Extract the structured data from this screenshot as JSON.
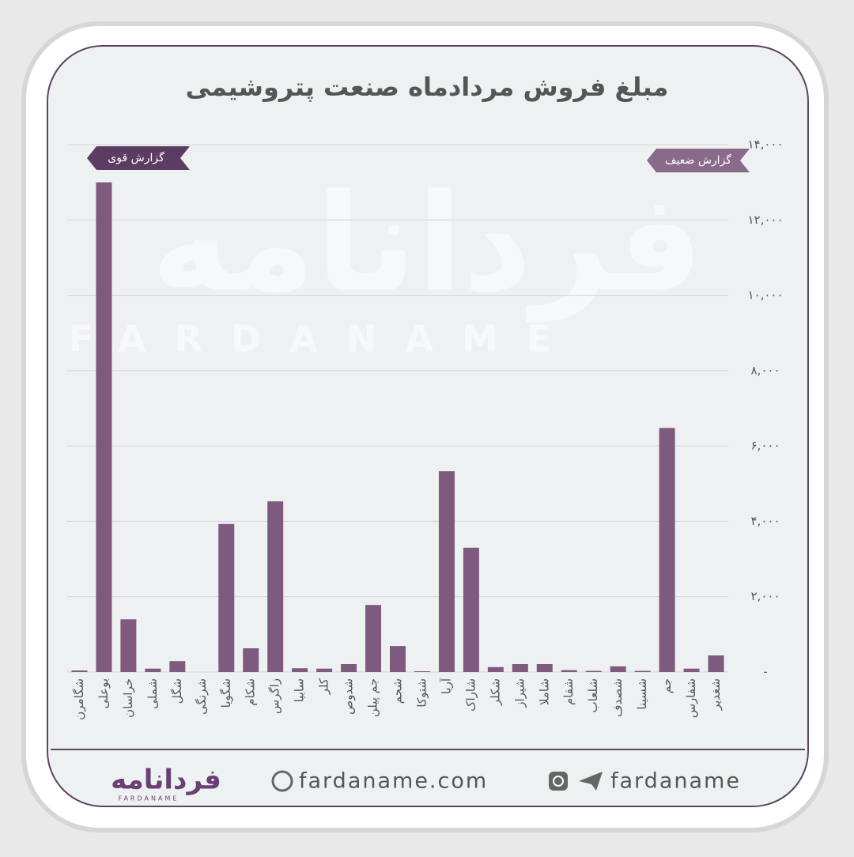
{
  "chart_data": {
    "type": "bar",
    "title": "مبلغ فروش مردادماه صنعت پتروشیمی",
    "categories": [
      "شگامرن",
      "بوعلی",
      "خراسان",
      "شملی",
      "شگل",
      "شرنگی",
      "شگویا",
      "شکام",
      "زاگرس",
      "سابیا",
      "کلر",
      "شدوص",
      "جم پیلن",
      "شجم",
      "شتوکا",
      "آریا",
      "شاراک",
      "شکلر",
      "شیراز",
      "شاملا",
      "شفام",
      "شلعاب",
      "شصدف",
      "شسینا",
      "جم",
      "شفارس",
      "شغدیر"
    ],
    "values": [
      40,
      13000,
      1400,
      90,
      290,
      0,
      3930,
      630,
      4530,
      100,
      90,
      210,
      1780,
      690,
      20,
      5330,
      3300,
      130,
      210,
      210,
      50,
      30,
      150,
      30,
      6480,
      90,
      440
    ],
    "color": "#7d5a7e",
    "ylim": [
      0,
      14000
    ],
    "yticks": [
      {
        "value": 0,
        "label": "-"
      },
      {
        "value": 2000,
        "label": "۲,۰۰۰"
      },
      {
        "value": 4000,
        "label": "۴,۰۰۰"
      },
      {
        "value": 6000,
        "label": "۶,۰۰۰"
      },
      {
        "value": 8000,
        "label": "۸,۰۰۰"
      },
      {
        "value": 10000,
        "label": "۱۰,۰۰۰"
      },
      {
        "value": 12000,
        "label": "۱۲,۰۰۰"
      },
      {
        "value": 14000,
        "label": "۱۴,۰۰۰"
      }
    ],
    "grid": true,
    "annotations": [
      "گزارش قوی",
      "گزارش ضعیف"
    ]
  },
  "footer": {
    "logo": "فردانامه",
    "logo_latin": "FARDANAME",
    "website": "fardaname.com",
    "social": "fardaname"
  }
}
